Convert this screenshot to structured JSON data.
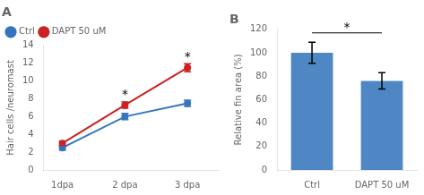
{
  "chart_data": [
    {
      "type": "line",
      "title": "A",
      "x": [
        1,
        2,
        3
      ],
      "series": [
        {
          "name": "Ctrl",
          "color": "#3575c0",
          "values": [
            2.5,
            6.0,
            7.5
          ],
          "yerr": [
            0.25,
            0.35,
            0.35
          ],
          "marker": "circle"
        },
        {
          "name": "DAPT 50 uM",
          "color": "#cc2222",
          "values": [
            3.0,
            7.3,
            11.5
          ],
          "yerr": [
            0.25,
            0.35,
            0.45
          ],
          "marker": "circle"
        }
      ],
      "xlim": [
        0.7,
        3.5
      ],
      "xticks": [
        {
          "value": 1,
          "label": "1dpa"
        },
        {
          "value": 2,
          "label": "2 dpa"
        },
        {
          "value": 3,
          "label": "3 dpa"
        }
      ],
      "ylabel": "Hair cells /neuromast",
      "ylim": [
        0,
        14
      ],
      "yticks": [
        0,
        2,
        4,
        6,
        8,
        10,
        12,
        14
      ],
      "annotations": [
        {
          "text": "*",
          "x": 2,
          "y": 7.9
        },
        {
          "text": "*",
          "x": 3,
          "y": 12.1
        }
      ],
      "legend": "upper left",
      "grid": false
    },
    {
      "type": "bar",
      "title": "B",
      "categories": [
        "Ctrl",
        "DAPT 50 uM"
      ],
      "values": [
        100,
        76
      ],
      "yerr": [
        9,
        7
      ],
      "color": "#4e87c4",
      "ylabel": "Relative fin area (%)",
      "ylim": [
        0,
        120
      ],
      "yticks": [
        0,
        20,
        40,
        60,
        80,
        100,
        120
      ],
      "annotations": [
        {
          "text": "*",
          "x": [
            "Ctrl",
            "DAPT 50 uM"
          ],
          "y": 117
        }
      ],
      "grid": false
    }
  ]
}
